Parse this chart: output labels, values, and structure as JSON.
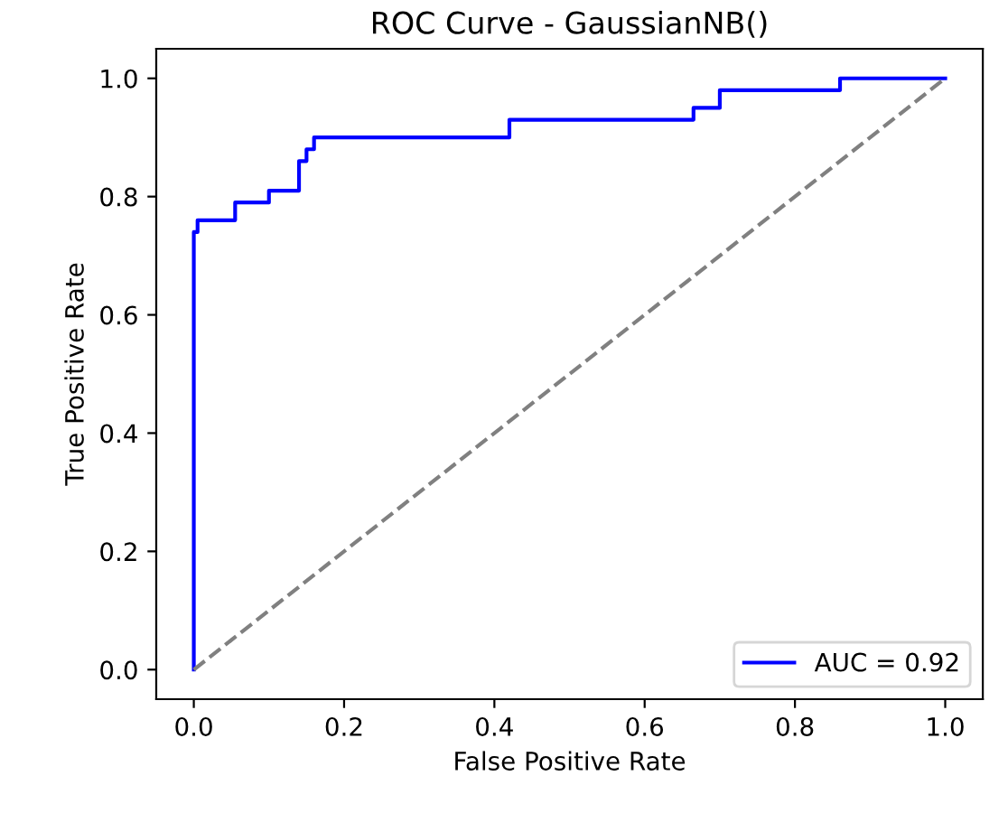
{
  "chart_data": {
    "type": "line",
    "title": "ROC Curve - GaussianNB()",
    "xlabel": "False Positive Rate",
    "ylabel": "True Positive Rate",
    "xlim": [
      -0.05,
      1.05
    ],
    "ylim": [
      -0.05,
      1.05
    ],
    "xticks": [
      {
        "value": 0,
        "label": "0.0"
      },
      0.2,
      0.4,
      0.6,
      0.8,
      {
        "value": 1,
        "label": "1.0"
      }
    ],
    "yticks": [
      {
        "value": 0,
        "label": "0.0"
      },
      0.2,
      0.4,
      0.6,
      0.8,
      {
        "value": 1,
        "label": "1.0"
      }
    ],
    "grid": false,
    "legend": "lower right",
    "marker": "none",
    "series": [
      {
        "name": "AUC = 0.92",
        "color": "#0000ff",
        "line_style": "solid",
        "x": [
          0,
          0,
          0.005,
          0.005,
          0.055,
          0.055,
          0.1,
          0.1,
          0.14,
          0.14,
          0.15,
          0.15,
          0.16,
          0.16,
          0.42,
          0.42,
          0.665,
          0.665,
          0.7,
          0.7,
          0.86,
          0.86,
          1.0
        ],
        "values": [
          0,
          0.74,
          0.74,
          0.76,
          0.76,
          0.79,
          0.79,
          0.81,
          0.81,
          0.86,
          0.86,
          0.88,
          0.88,
          0.9,
          0.9,
          0.93,
          0.93,
          0.95,
          0.95,
          0.98,
          0.98,
          1.0,
          1.0
        ]
      },
      {
        "color": "#808080",
        "line_style": "dashed",
        "x": [
          0,
          1
        ],
        "values": [
          0,
          1
        ]
      }
    ]
  }
}
